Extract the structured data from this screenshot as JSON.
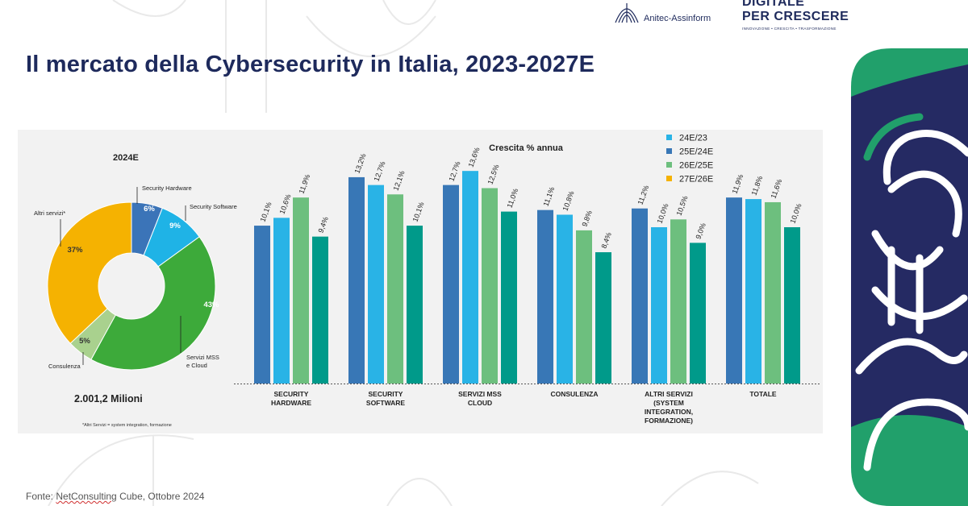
{
  "header": {
    "assinform_label": "Anitec-Assinform",
    "dpc_line1": "DIGITALE",
    "dpc_line2": "PER CRESCERE",
    "dpc_line3": "INNOVAZIONE • CRESCITA • TRASFORMAZIONE"
  },
  "title": "Il mercato della Cybersecurity in Italia, 2023-2027E",
  "source_prefix": "Fonte: ",
  "source_name": "NetConsulting",
  "source_suffix": " Cube, Ottobre 2024",
  "colors": {
    "navy": "#1e2a5c",
    "green_brand": "#21a06b",
    "donut_hw": "#3b74b8",
    "donut_sw": "#1fb3e6",
    "donut_mss": "#3daa3a",
    "donut_cons": "#a9d18e",
    "donut_altri": "#f5b201",
    "bar_24": "#3877b6",
    "bar_25": "#29b3e6",
    "bar_26": "#6dbf7e",
    "bar_27": "#009a8a"
  },
  "chart_data": [
    {
      "type": "pie",
      "variant": "donut",
      "title": "2024E",
      "total_label": "2.001,2 Milioni",
      "footnote": "*Altri Servizi = system integration, formazione",
      "slices": [
        {
          "label": "Security Hardware",
          "value": 6,
          "value_label": "6%",
          "color": "#3b74b8"
        },
        {
          "label": "Security Software",
          "value": 9,
          "value_label": "9%",
          "color": "#1fb3e6"
        },
        {
          "label": "Servizi MSS e Cloud",
          "value": 43,
          "value_label": "43%",
          "color": "#3daa3a"
        },
        {
          "label": "Consulenza",
          "value": 5,
          "value_label": "5%",
          "color": "#a9d18e"
        },
        {
          "label": "Altri servizi*",
          "value": 37,
          "value_label": "37%",
          "color": "#f5b201"
        }
      ]
    },
    {
      "type": "bar",
      "title": "Crescita % annua",
      "categories": [
        [
          "SECURITY",
          "HARDWARE"
        ],
        [
          "SECURITY",
          "SOFTWARE"
        ],
        [
          "SERVIZI MSS",
          "CLOUD"
        ],
        [
          "CONSULENZA"
        ],
        [
          "ALTRI SERVIZI",
          "(SYSTEM",
          "INTEGRATION,",
          "FORMAZIONE)"
        ],
        [
          "TOTALE"
        ]
      ],
      "legend_position": "top-right",
      "ylim": [
        0,
        14
      ],
      "series": [
        {
          "name": "24E/23",
          "color": "#29b3e6",
          "values": [
            10.1,
            13.2,
            12.7,
            11.1,
            11.2,
            11.9
          ],
          "labels": [
            "10,1%",
            "13,2%",
            "12,7%",
            "11,1%",
            "11,2%",
            "11,9%"
          ]
        },
        {
          "name": "25E/24E",
          "color": "#3877b6",
          "values": [
            10.6,
            12.7,
            13.6,
            10.8,
            10.0,
            11.8
          ],
          "labels": [
            "10,6%",
            "12,7%",
            "13,6%",
            "10,8%",
            "10,0%",
            "11,8%"
          ]
        },
        {
          "name": "26E/25E",
          "color": "#6dbf7e",
          "values": [
            11.9,
            12.1,
            12.5,
            9.8,
            10.5,
            11.6
          ],
          "labels": [
            "11,9%",
            "12,1%",
            "12,5%",
            "9,8%",
            "10,5%",
            "11,6%"
          ]
        },
        {
          "name": "27E/26E",
          "color": "#f5b201",
          "values": [
            9.4,
            10.1,
            11.0,
            8.4,
            9.0,
            10.0
          ],
          "labels": [
            "9,4%",
            "10,1%",
            "11,0%",
            "8,4%",
            "9,0%",
            "10,0%"
          ]
        }
      ]
    }
  ]
}
